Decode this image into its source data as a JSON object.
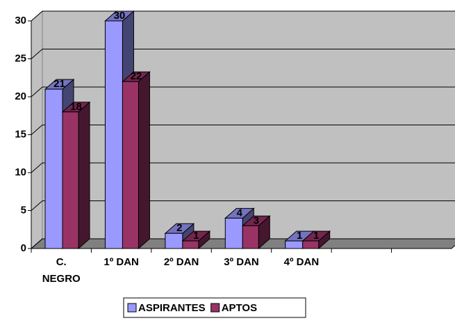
{
  "chart_data": {
    "type": "bar3d",
    "categories": [
      "C. NEGRO",
      "1º DAN",
      "2º DAN",
      "3º DAN",
      "4º DAN",
      null,
      null
    ],
    "series": [
      {
        "name": "ASPIRANTES",
        "color": "#9999ff",
        "values": [
          21,
          30,
          2,
          4,
          1,
          null,
          null
        ]
      },
      {
        "name": "APTOS",
        "color": "#993366",
        "values": [
          18,
          22,
          1,
          3,
          1,
          null,
          null
        ]
      }
    ],
    "ylim": [
      0,
      30
    ],
    "yticks": [
      0,
      5,
      10,
      15,
      20,
      25,
      30
    ],
    "grid": true,
    "legend": "bottom"
  }
}
